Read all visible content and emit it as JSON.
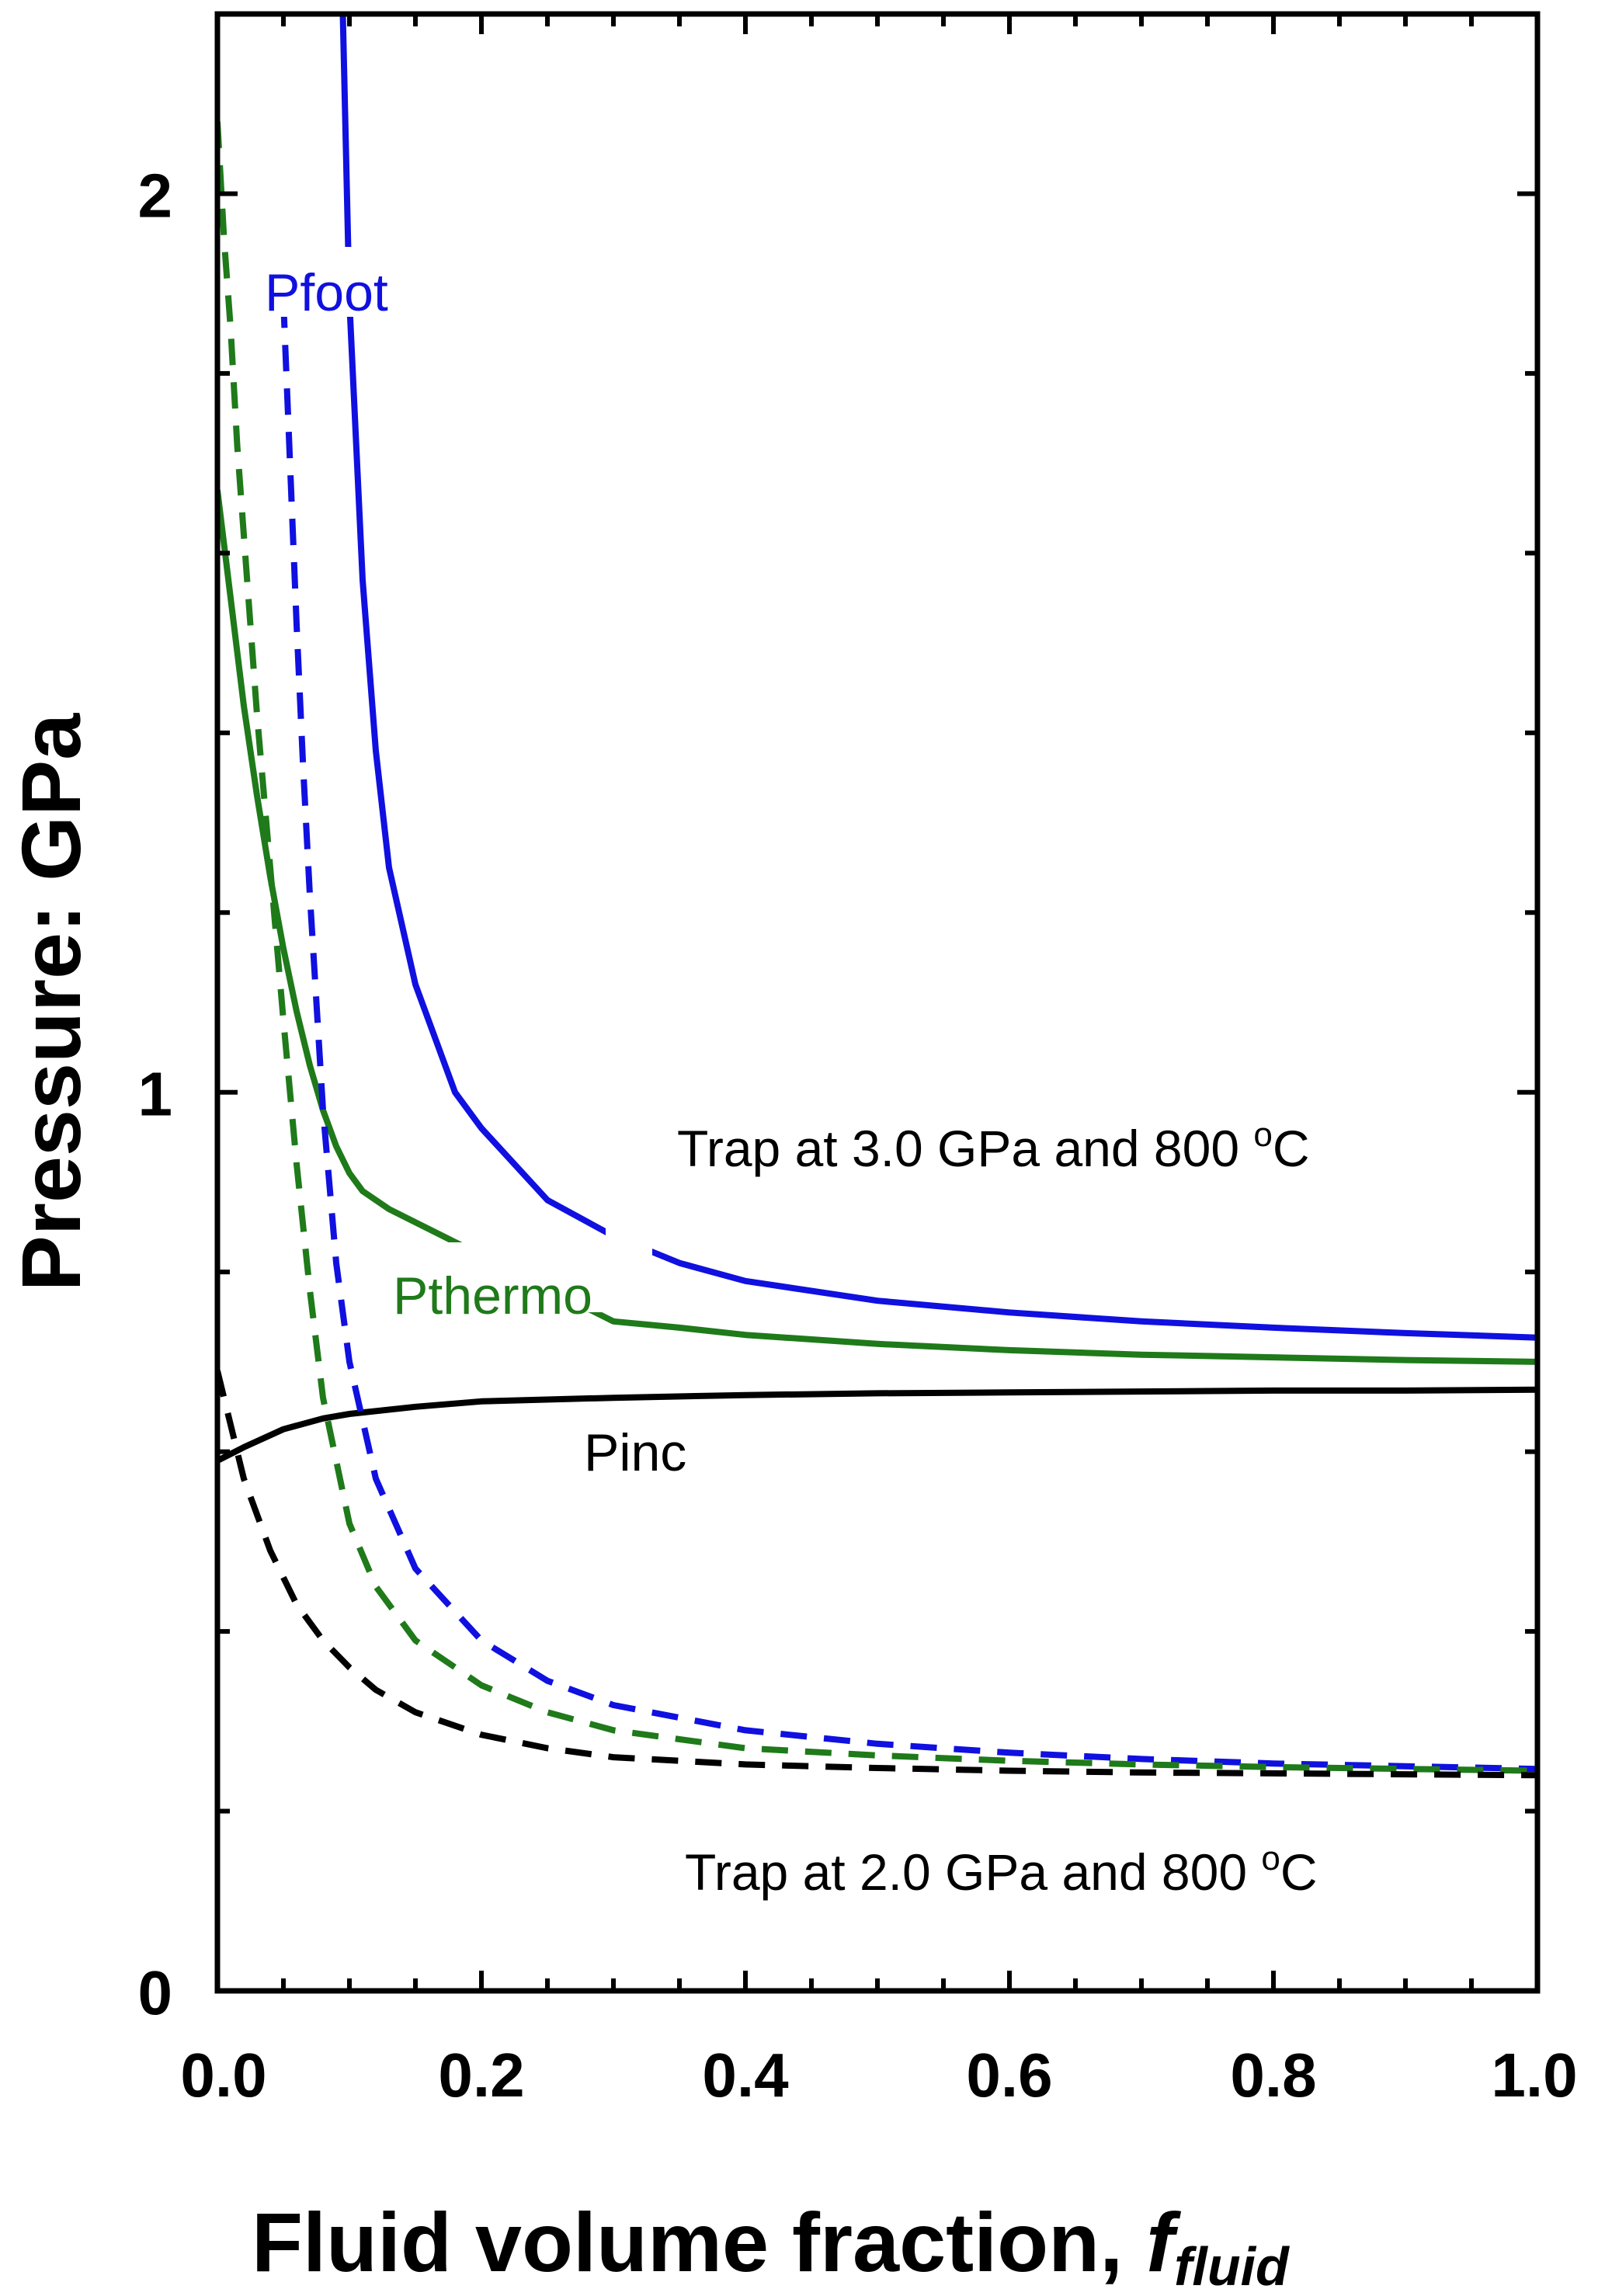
{
  "chart_data": {
    "type": "line",
    "title": "",
    "xlabel": "Fluid volume fraction,",
    "xlabel_italic": "f",
    "xlabel_subscript": "fluid",
    "ylabel": "Pressure: GPa",
    "xlim": [
      0,
      1
    ],
    "ylim": [
      0,
      2.2
    ],
    "x_ticks": [
      0.0,
      0.2,
      0.4,
      0.6,
      0.8,
      1.0
    ],
    "x_tick_labels": [
      "0.0",
      "0.2",
      "0.4",
      "0.6",
      "0.8",
      "1.0"
    ],
    "x_minor_step": 0.05,
    "y_ticks": [
      0,
      1,
      2
    ],
    "y_tick_labels": [
      "0",
      "1",
      "2"
    ],
    "y_minor_step": 0.2,
    "grid": false,
    "colors": {
      "blue": "#1010e0",
      "green": "#1f7a1a",
      "black": "#000000"
    },
    "series": [
      {
        "name": "Pfoot (3.0 GPa, 800 oC)",
        "color": "blue",
        "style": "solid",
        "x": [
          0.095,
          0.1,
          0.11,
          0.12,
          0.13,
          0.15,
          0.18,
          0.2,
          0.25,
          0.3,
          0.35,
          0.4,
          0.5,
          0.6,
          0.7,
          0.8,
          0.9,
          1.0
        ],
        "y": [
          2.2,
          1.88,
          1.57,
          1.38,
          1.25,
          1.12,
          1.0,
          0.96,
          0.88,
          0.84,
          0.81,
          0.79,
          0.768,
          0.755,
          0.745,
          0.738,
          0.732,
          0.727
        ]
      },
      {
        "name": "Pthermo (3.0 GPa, 800 oC)",
        "color": "green",
        "style": "solid",
        "x": [
          0.0,
          0.01,
          0.02,
          0.03,
          0.04,
          0.05,
          0.06,
          0.07,
          0.08,
          0.09,
          0.1,
          0.11,
          0.13,
          0.3,
          0.35,
          0.4,
          0.5,
          0.6,
          0.7,
          0.8,
          0.9,
          1.0
        ],
        "y": [
          1.67,
          1.55,
          1.43,
          1.33,
          1.24,
          1.16,
          1.09,
          1.03,
          0.98,
          0.94,
          0.91,
          0.89,
          0.87,
          0.745,
          0.738,
          0.73,
          0.72,
          0.713,
          0.708,
          0.705,
          0.702,
          0.7
        ]
      },
      {
        "name": "Pinc (3.0 GPa, 800 oC)",
        "color": "black",
        "style": "solid",
        "x": [
          0.0,
          0.02,
          0.05,
          0.08,
          0.1,
          0.15,
          0.2,
          0.3,
          0.4,
          0.5,
          0.6,
          0.7,
          0.8,
          0.9,
          1.0
        ],
        "y": [
          0.59,
          0.605,
          0.625,
          0.637,
          0.642,
          0.65,
          0.656,
          0.66,
          0.663,
          0.665,
          0.666,
          0.667,
          0.668,
          0.668,
          0.669
        ]
      },
      {
        "name": "Pfoot (2.0 GPa, 800 oC)",
        "color": "blue",
        "style": "dashed",
        "x": [
          0.05,
          0.055,
          0.06,
          0.065,
          0.07,
          0.075,
          0.08,
          0.09,
          0.1,
          0.12,
          0.15,
          0.2,
          0.25,
          0.3,
          0.4,
          0.5,
          0.6,
          0.7,
          0.8,
          0.9,
          1.0
        ],
        "y": [
          1.88,
          1.7,
          1.52,
          1.36,
          1.22,
          1.1,
          0.98,
          0.81,
          0.7,
          0.57,
          0.47,
          0.39,
          0.345,
          0.318,
          0.29,
          0.275,
          0.265,
          0.258,
          0.253,
          0.25,
          0.247
        ]
      },
      {
        "name": "Pthermo (2.0 GPa, 800 oC)",
        "color": "green",
        "style": "dashed",
        "x": [
          0.0,
          0.005,
          0.01,
          0.015,
          0.02,
          0.03,
          0.04,
          0.05,
          0.06,
          0.07,
          0.08,
          0.1,
          0.12,
          0.15,
          0.2,
          0.25,
          0.3,
          0.4,
          0.5,
          0.6,
          0.7,
          0.8,
          0.9,
          1.0
        ],
        "y": [
          2.08,
          1.95,
          1.85,
          1.72,
          1.62,
          1.42,
          1.25,
          1.08,
          0.92,
          0.78,
          0.66,
          0.52,
          0.45,
          0.39,
          0.34,
          0.31,
          0.29,
          0.27,
          0.262,
          0.256,
          0.252,
          0.249,
          0.247,
          0.245
        ]
      },
      {
        "name": "Pinc (2.0 GPa, 800 oC)",
        "color": "black",
        "style": "dashed",
        "x": [
          0.0,
          0.01,
          0.02,
          0.03,
          0.04,
          0.05,
          0.06,
          0.08,
          0.1,
          0.12,
          0.15,
          0.2,
          0.25,
          0.3,
          0.4,
          0.5,
          0.6,
          0.7,
          0.8,
          0.9,
          1.0
        ],
        "y": [
          0.69,
          0.63,
          0.57,
          0.53,
          0.49,
          0.46,
          0.43,
          0.39,
          0.36,
          0.335,
          0.31,
          0.285,
          0.27,
          0.26,
          0.252,
          0.248,
          0.245,
          0.243,
          0.242,
          0.241,
          0.24
        ]
      }
    ],
    "series_labels": [
      {
        "text": "Pfoot",
        "color": "blue"
      },
      {
        "text": "Pthermo",
        "color": "green"
      },
      {
        "text": "Pinc",
        "color": "black"
      }
    ],
    "annotations": [
      {
        "text": "Trap at 3.0 GPa and 800 ",
        "sup": "o",
        "suffix": "C"
      },
      {
        "text": "Trap at 2.0 GPa and 800 ",
        "sup": "o",
        "suffix": "C"
      }
    ]
  }
}
